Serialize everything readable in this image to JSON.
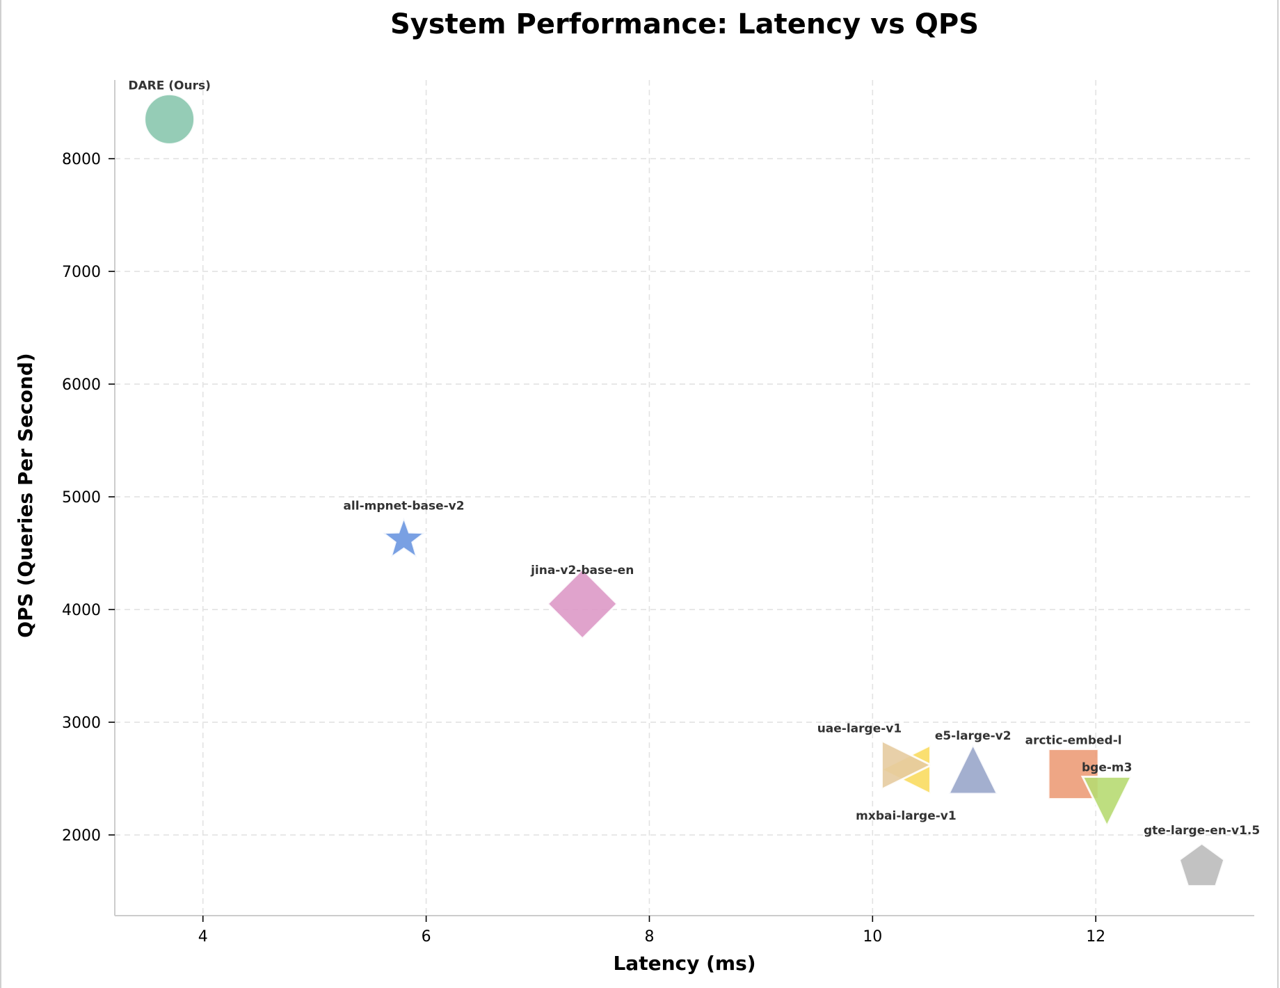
{
  "chart_data": {
    "type": "scatter",
    "title": "System Performance: Latency vs QPS",
    "xlabel": "Latency (ms)",
    "ylabel": "QPS (Queries Per Second)",
    "xlim": [
      3.21,
      13.42
    ],
    "ylim": [
      1284,
      8698
    ],
    "xticks": [
      4,
      6,
      8,
      10,
      12
    ],
    "xtick_labels": [
      "4",
      "6",
      "8",
      "10",
      "12"
    ],
    "yticks": [
      2000,
      3000,
      4000,
      5000,
      6000,
      7000,
      8000
    ],
    "ytick_labels": [
      "2000",
      "3000",
      "4000",
      "5000",
      "6000",
      "7000",
      "8000"
    ],
    "grid": true,
    "points": [
      {
        "label": "DARE (Ours)",
        "x": 3.7,
        "y": 8350,
        "marker": "circle",
        "color": "#8AC6AE",
        "label_position": "above"
      },
      {
        "label": "all-mpnet-base-v2",
        "x": 5.8,
        "y": 4620,
        "marker": "star",
        "color": "#6A96E0",
        "label_position": "above"
      },
      {
        "label": "jina-v2-base-en",
        "x": 7.4,
        "y": 4050,
        "marker": "diamond",
        "color": "#DD99C6",
        "label_position": "above"
      },
      {
        "label": "mxbai-large-v1",
        "x": 10.3,
        "y": 2580,
        "marker": "triangle-left",
        "color": "#F9DC60",
        "label_position": "below"
      },
      {
        "label": "uae-large-v1",
        "x": 10.3,
        "y": 2620,
        "marker": "triangle-right",
        "color": "#E5CBA0",
        "label_position": "above-left"
      },
      {
        "label": "e5-large-v2",
        "x": 10.9,
        "y": 2580,
        "marker": "triangle-up",
        "color": "#99A6CA",
        "label_position": "above"
      },
      {
        "label": "arctic-embed-l",
        "x": 11.8,
        "y": 2540,
        "marker": "square",
        "color": "#EC9C78",
        "label_position": "above"
      },
      {
        "label": "bge-m3",
        "x": 12.1,
        "y": 2300,
        "marker": "triangle-down",
        "color": "#B7DA72",
        "label_position": "above"
      },
      {
        "label": "gte-large-en-v1.5",
        "x": 12.95,
        "y": 1740,
        "marker": "pentagon",
        "color": "#BBBBBB",
        "label_position": "above"
      }
    ]
  }
}
